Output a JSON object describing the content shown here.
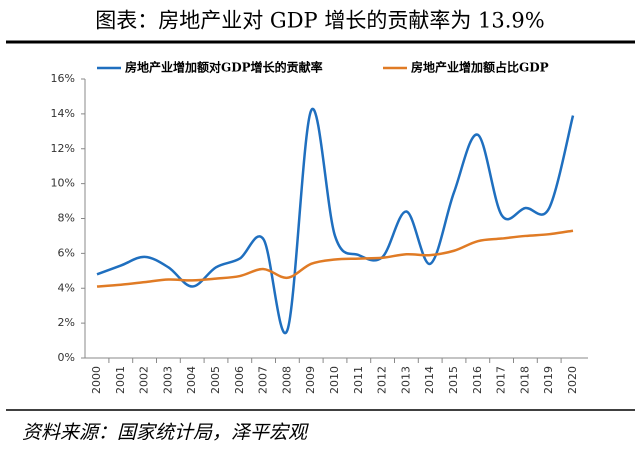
{
  "title": "图表：房地产业对 GDP 增长的贡献率为 13.9%",
  "source": "资料来源：国家统计局，泽平宏观",
  "chart_data": {
    "type": "line",
    "x": [
      "2000",
      "2001",
      "2002",
      "2003",
      "2004",
      "2005",
      "2006",
      "2007",
      "2008",
      "2009",
      "2010",
      "2011",
      "2012",
      "2013",
      "2014",
      "2015",
      "2016",
      "2017",
      "2018",
      "2019",
      "2020"
    ],
    "series": [
      {
        "name": "房地产业增加额对GDP增长的贡献率",
        "color": "#1f6fbf",
        "values": [
          4.8,
          5.3,
          5.8,
          5.2,
          4.1,
          5.2,
          5.7,
          6.8,
          1.6,
          14.2,
          7.0,
          5.9,
          5.8,
          8.4,
          5.4,
          9.5,
          12.8,
          8.2,
          8.6,
          8.6,
          13.9
        ]
      },
      {
        "name": "房地产业增加额占比GDP",
        "color": "#e07b25",
        "values": [
          4.1,
          4.2,
          4.35,
          4.5,
          4.45,
          4.55,
          4.7,
          5.1,
          4.6,
          5.4,
          5.65,
          5.7,
          5.75,
          5.95,
          5.9,
          6.15,
          6.7,
          6.85,
          7.0,
          7.1,
          7.3
        ]
      }
    ],
    "ylim": [
      0,
      16
    ],
    "yticks": [
      {
        "value": 0,
        "label": "0%"
      },
      {
        "value": 2,
        "label": "2%"
      },
      {
        "value": 4,
        "label": "4%"
      },
      {
        "value": 6,
        "label": "6%"
      },
      {
        "value": 8,
        "label": "8%"
      },
      {
        "value": 10,
        "label": "10%"
      },
      {
        "value": 12,
        "label": "12%"
      },
      {
        "value": 14,
        "label": "14%"
      },
      {
        "value": 16,
        "label": "16%"
      }
    ],
    "grid": false,
    "legend": "top"
  }
}
